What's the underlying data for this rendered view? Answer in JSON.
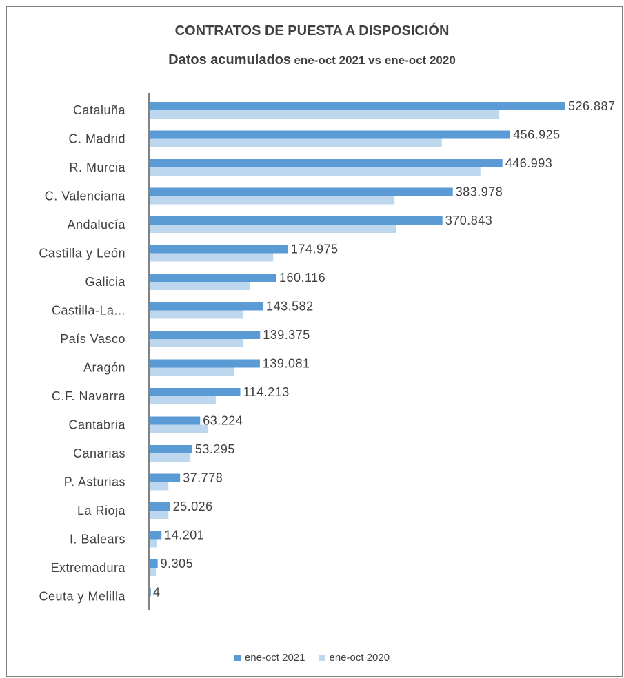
{
  "chart_data": {
    "type": "bar",
    "orientation": "horizontal",
    "title": "CONTRATOS DE PUESTA A DISPOSICIÓN",
    "subtitle_main": "Datos acumulados",
    "subtitle_rest": "ene-oct 2021 vs ene-oct 2020",
    "categories": [
      "Cataluña",
      "C. Madrid",
      "R. Murcia",
      "C. Valenciana",
      "Andalucía",
      "Castilla y León",
      "Galicia",
      "Castilla-La...",
      "País Vasco",
      "Aragón",
      "C.F. Navarra",
      "Cantabria",
      "Canarias",
      "P. Asturias",
      "La Rioja",
      "I. Balears",
      "Extremadura",
      "Ceuta y Melilla"
    ],
    "series": [
      {
        "name": "ene-oct 2021",
        "color": "#5b9bd5",
        "values": [
          526887,
          456925,
          446993,
          383978,
          370843,
          174975,
          160116,
          143582,
          139375,
          139081,
          114213,
          63224,
          53295,
          37778,
          25026,
          14201,
          9305,
          4
        ],
        "labels": [
          "526.887",
          "456.925",
          "446.993",
          "383.978",
          "370.843",
          "174.975",
          "160.116",
          "143.582",
          "139.375",
          "139.081",
          "114.213",
          "63.224",
          "53.295",
          "37.778",
          "25.026",
          "14.201",
          "9.305",
          "4"
        ]
      },
      {
        "name": "ene-oct 2020",
        "color": "#bdd7ee",
        "values": [
          443000,
          370000,
          419000,
          310000,
          312000,
          156000,
          126000,
          118000,
          118000,
          106000,
          83000,
          73000,
          51000,
          23000,
          23000,
          8000,
          7000,
          0
        ]
      }
    ],
    "xlim": [
      0,
      526887
    ],
    "grid": false,
    "legend_position": "bottom"
  }
}
